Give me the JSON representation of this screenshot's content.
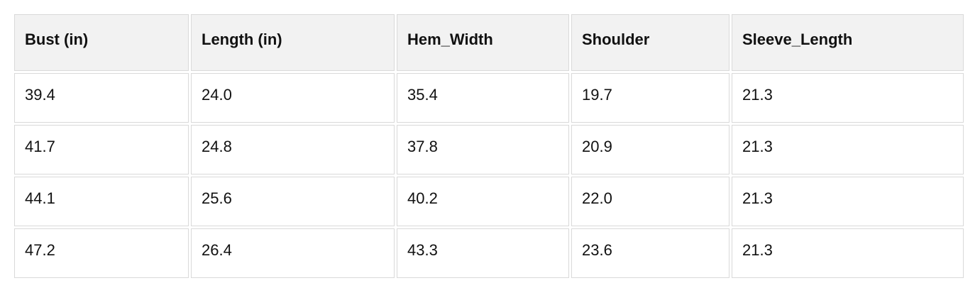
{
  "colors": {
    "page_bg": "#ffffff",
    "header_bg": "#f2f2f2",
    "cell_bg": "#ffffff",
    "border": "#d9d9d9",
    "text": "#111111"
  },
  "table": {
    "columns": [
      "Bust (in)",
      "Length (in)",
      "Hem_Width",
      "Shoulder",
      "Sleeve_Length"
    ],
    "rows": [
      [
        "39.4",
        "24.0",
        "35.4",
        "19.7",
        "21.3"
      ],
      [
        "41.7",
        "24.8",
        "37.8",
        "20.9",
        "21.3"
      ],
      [
        "44.1",
        "25.6",
        "40.2",
        "22.0",
        "21.3"
      ],
      [
        "47.2",
        "26.4",
        "43.3",
        "23.6",
        "21.3"
      ]
    ]
  },
  "chart_data": {
    "type": "table",
    "title": "",
    "columns": [
      "Bust (in)",
      "Length (in)",
      "Hem_Width",
      "Shoulder",
      "Sleeve_Length"
    ],
    "rows": [
      [
        39.4,
        24.0,
        35.4,
        19.7,
        21.3
      ],
      [
        41.7,
        24.8,
        37.8,
        20.9,
        21.3
      ],
      [
        44.1,
        25.6,
        40.2,
        22.0,
        21.3
      ],
      [
        47.2,
        26.4,
        43.3,
        23.6,
        21.3
      ]
    ]
  }
}
